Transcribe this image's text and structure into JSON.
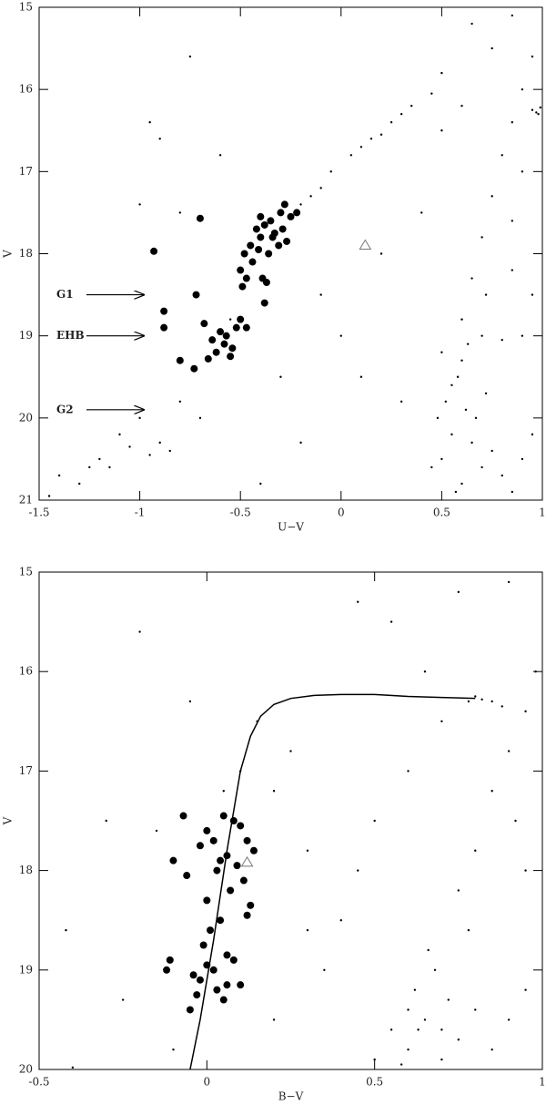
{
  "chart_data": [
    {
      "type": "scatter",
      "xlabel": "U−V",
      "ylabel": "V",
      "xlim": [
        -1.5,
        1
      ],
      "xticks": [
        -1.5,
        -1,
        -0.5,
        0,
        0.5,
        1
      ],
      "ylim": [
        21,
        15
      ],
      "yticks": [
        15,
        16,
        17,
        18,
        19,
        20,
        21
      ],
      "series": [
        {
          "style": "small-dot",
          "color": "#000000",
          "x": [
            0.5,
            0.55,
            0.6,
            0.62,
            0.58,
            0.65,
            0.7,
            0.52,
            0.57,
            0.6,
            0.55,
            0.67,
            0.75,
            0.8,
            0.85,
            0.5,
            0.63,
            0.72,
            0.45,
            0.48,
            0.9,
            0.95,
            0.6,
            0.65,
            0.7,
            0.75,
            0.8,
            0.85,
            0.9,
            0.95,
            0.72,
            0.85,
            0.9,
            0.98,
            0.95,
            0.97,
            0.99,
            0.7,
            0.8,
            0.9,
            0.85,
            0.95,
            0.75,
            0.6,
            0.5,
            0.65,
            0.85,
            0.4,
            0.3,
            -0.15,
            -0.05,
            0.05,
            0.15,
            0.25,
            0.35,
            0.45,
            0.5,
            -0.1,
            0.1,
            0.2,
            0.3,
            -0.2,
            -0.95,
            -0.9,
            -0.75,
            -0.6,
            -0.8,
            -1.0,
            -0.55,
            -0.1,
            0.0,
            0.1,
            0.2,
            -0.3,
            -0.2,
            -0.4,
            -1.2,
            -1.1,
            -1.0,
            -0.9,
            -0.85,
            -1.3,
            -1.4,
            -1.15,
            -0.95,
            -1.05,
            -1.25,
            -0.8,
            -0.7,
            -1.45
          ],
          "values": [
            20.5,
            20.2,
            20.8,
            19.9,
            19.5,
            20.3,
            20.6,
            19.8,
            20.9,
            19.3,
            19.6,
            20.0,
            20.4,
            20.7,
            20.9,
            19.2,
            19.1,
            19.7,
            20.6,
            20.0,
            20.5,
            20.2,
            18.8,
            18.3,
            17.8,
            17.3,
            16.8,
            16.4,
            16.0,
            15.6,
            18.5,
            17.6,
            17.0,
            16.3,
            16.25,
            16.28,
            16.22,
            19.0,
            19.05,
            19.0,
            18.2,
            18.5,
            15.5,
            16.2,
            16.5,
            15.2,
            15.1,
            17.5,
            19.8,
            17.3,
            17.0,
            16.8,
            16.6,
            16.4,
            16.2,
            16.05,
            15.8,
            17.2,
            16.7,
            16.55,
            16.3,
            17.4,
            16.4,
            16.6,
            15.6,
            16.8,
            17.5,
            17.4,
            18.8,
            18.5,
            19.0,
            19.5,
            18.0,
            19.5,
            20.3,
            20.8,
            20.5,
            20.2,
            20.0,
            20.3,
            20.4,
            20.8,
            20.7,
            20.6,
            20.45,
            20.35,
            20.6,
            19.8,
            20.0,
            20.95
          ]
        },
        {
          "style": "big-dot",
          "color": "#000000",
          "x": [
            -0.28,
            -0.3,
            -0.25,
            -0.35,
            -0.38,
            -0.42,
            -0.4,
            -0.33,
            -0.27,
            -0.22,
            -0.45,
            -0.48,
            -0.5,
            -0.44,
            -0.36,
            -0.39,
            -0.31,
            -0.37,
            -0.47,
            -0.49,
            -0.41,
            -0.34,
            -0.29,
            -0.38,
            -0.4,
            -0.7,
            -0.93,
            -0.72,
            -0.88,
            -0.88,
            -0.8,
            -0.73,
            -0.68,
            -0.64,
            -0.62,
            -0.6,
            -0.57,
            -0.55,
            -0.52,
            -0.5,
            -0.47,
            -0.66,
            -0.58,
            -0.54
          ],
          "values": [
            17.4,
            17.5,
            17.55,
            17.6,
            17.65,
            17.7,
            17.8,
            17.75,
            17.85,
            17.5,
            17.9,
            18.0,
            18.2,
            18.1,
            18.0,
            18.3,
            17.9,
            18.35,
            18.3,
            18.4,
            17.95,
            17.8,
            17.7,
            18.6,
            17.55,
            17.57,
            17.97,
            18.5,
            18.7,
            18.9,
            19.3,
            19.4,
            18.85,
            19.05,
            19.2,
            18.95,
            19.0,
            19.25,
            18.9,
            18.8,
            18.9,
            19.28,
            19.1,
            19.15
          ]
        },
        {
          "style": "triangle",
          "color": "#777777",
          "x": [
            0.12
          ],
          "values": [
            17.9
          ]
        }
      ],
      "annotations": [
        {
          "text": "G1",
          "x": -0.98,
          "y": 18.5
        },
        {
          "text": "EHB",
          "x": -0.98,
          "y": 19.0
        },
        {
          "text": "G2",
          "x": -0.98,
          "y": 19.9
        }
      ]
    },
    {
      "type": "scatter",
      "xlabel": "B−V",
      "ylabel": "V",
      "xlim": [
        -0.5,
        1
      ],
      "xticks": [
        -0.5,
        0,
        0.5,
        1
      ],
      "ylim": [
        20,
        15
      ],
      "yticks": [
        15,
        16,
        17,
        18,
        19,
        20
      ],
      "series": [
        {
          "style": "small-dot",
          "color": "#000000",
          "x": [
            0.6,
            0.65,
            0.7,
            0.55,
            0.62,
            0.68,
            0.75,
            0.8,
            0.58,
            0.72,
            0.5,
            0.85,
            0.9,
            0.66,
            0.78,
            0.95,
            0.63,
            0.6,
            0.7,
            0.75,
            0.8,
            0.85,
            0.9,
            0.95,
            0.98,
            0.82,
            0.85,
            0.8,
            0.78,
            0.88,
            0.92,
            0.95,
            0.5,
            0.4,
            0.3,
            0.2,
            0.25,
            0.35,
            0.45,
            0.6,
            0.7,
            0.55,
            0.75,
            0.9,
            0.65,
            0.15,
            0.1,
            0.05,
            -0.05,
            -0.15,
            -0.3,
            -0.42,
            -0.25,
            -0.1,
            0.2,
            0.3,
            -0.4,
            -0.2,
            0.45
          ],
          "values": [
            19.8,
            19.5,
            19.9,
            19.6,
            19.2,
            19.0,
            19.7,
            19.4,
            19.95,
            19.3,
            19.9,
            19.8,
            19.5,
            18.8,
            18.6,
            19.2,
            19.6,
            19.4,
            19.6,
            18.2,
            17.8,
            17.2,
            16.8,
            16.4,
            16.0,
            16.28,
            16.3,
            16.25,
            16.3,
            16.35,
            17.5,
            18.0,
            17.5,
            18.5,
            17.8,
            17.2,
            16.8,
            19.0,
            18.0,
            17.0,
            16.5,
            15.5,
            15.2,
            15.1,
            16.0,
            16.5,
            17.0,
            17.2,
            16.3,
            17.6,
            17.5,
            18.6,
            19.3,
            19.8,
            19.5,
            18.6,
            19.98,
            15.6,
            15.3
          ]
        },
        {
          "style": "big-dot",
          "color": "#000000",
          "x": [
            0.05,
            0.08,
            0.1,
            0.0,
            0.02,
            -0.02,
            0.12,
            0.14,
            0.06,
            0.04,
            0.03,
            0.09,
            0.11,
            -0.07,
            -0.1,
            -0.06,
            0.07,
            0.13,
            0.0,
            0.01,
            -0.01,
            0.04,
            0.08,
            0.12,
            0.06,
            -0.03,
            -0.11,
            -0.12,
            -0.05,
            0.05,
            0.02,
            -0.02,
            0.1,
            0.06,
            -0.04,
            0.03,
            0.0
          ],
          "values": [
            17.45,
            17.5,
            17.55,
            17.6,
            17.7,
            17.75,
            17.7,
            17.8,
            17.85,
            17.9,
            18.0,
            17.95,
            18.1,
            17.45,
            17.9,
            18.05,
            18.2,
            18.35,
            18.3,
            18.6,
            18.75,
            18.5,
            18.9,
            18.45,
            19.15,
            19.25,
            18.9,
            19.0,
            19.4,
            19.3,
            19.0,
            19.1,
            19.15,
            18.85,
            19.05,
            19.2,
            18.95
          ]
        },
        {
          "style": "triangle",
          "color": "#777777",
          "x": [
            0.12
          ],
          "values": [
            17.92
          ]
        },
        {
          "style": "line",
          "color": "#000000",
          "x": [
            -0.05,
            -0.02,
            0.02,
            0.06,
            0.1,
            0.13,
            0.16,
            0.2,
            0.25,
            0.32,
            0.4,
            0.5,
            0.6,
            0.7,
            0.8
          ],
          "values": [
            20,
            19.5,
            18.7,
            17.8,
            17.0,
            16.65,
            16.45,
            16.33,
            16.27,
            16.24,
            16.23,
            16.23,
            16.25,
            16.26,
            16.27
          ]
        }
      ]
    }
  ]
}
